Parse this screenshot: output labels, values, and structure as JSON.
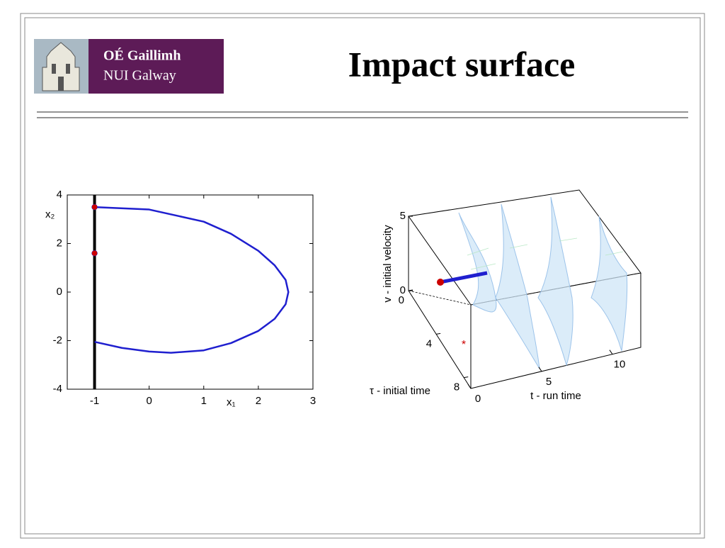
{
  "header": {
    "logo_line_1": "OÉ Gaillimh",
    "logo_line_2": "NUI Galway",
    "title": "Impact surface"
  },
  "chart_data": [
    {
      "type": "line",
      "xlabel": "x₁",
      "ylabel": "x₂",
      "xlim": [
        -1.5,
        3
      ],
      "ylim": [
        -4,
        4
      ],
      "xticks": [
        -1,
        0,
        1,
        2,
        3
      ],
      "yticks": [
        -4,
        -2,
        0,
        2,
        4
      ],
      "series": [
        {
          "style": "line",
          "color": "#000000",
          "width": 4,
          "x": [
            -1,
            -1
          ],
          "values": [
            -4,
            4
          ]
        },
        {
          "style": "line",
          "color": "#1f1fcf",
          "width": 2.5,
          "x": [
            -1,
            0,
            1,
            1.5,
            2,
            2.3,
            2.5,
            2.55,
            2.5,
            2.3,
            2,
            1.5,
            1,
            0.4,
            0,
            -0.5,
            -1
          ],
          "values": [
            3.5,
            3.4,
            2.9,
            2.4,
            1.7,
            1.1,
            0.5,
            0,
            -0.5,
            -1.1,
            -1.6,
            -2.1,
            -2.4,
            -2.5,
            -2.45,
            -2.3,
            -2.05
          ]
        },
        {
          "style": "markers",
          "color": "#cc0000",
          "x": [
            -1,
            -1
          ],
          "values": [
            3.5,
            1.6
          ]
        }
      ]
    },
    {
      "type": "surface",
      "xlabel": "t - run time",
      "ylabel": "τ - initial time",
      "zlabel": "v - initial velocity",
      "xlim": [
        0,
        12
      ],
      "ylim": [
        0,
        9
      ],
      "zlim": [
        0,
        5
      ],
      "xticks": [
        0,
        5,
        10
      ],
      "yticks": [
        0,
        4,
        8
      ],
      "zticks": [
        0,
        5
      ]
    }
  ]
}
